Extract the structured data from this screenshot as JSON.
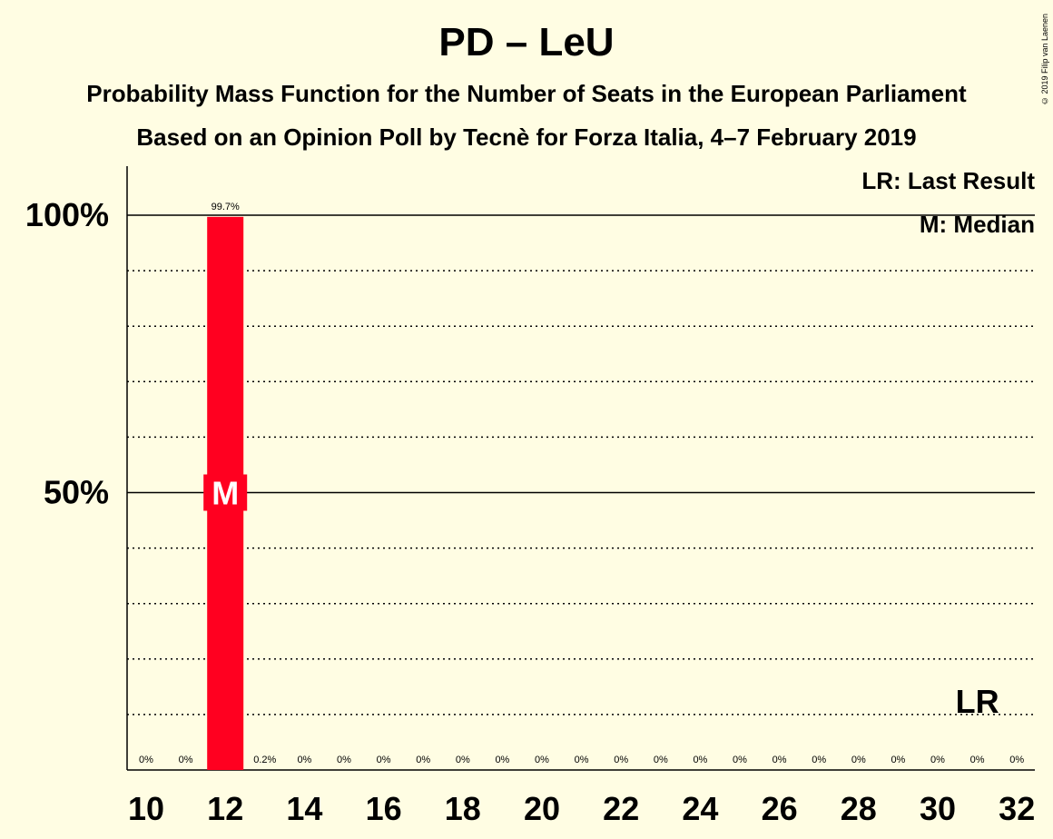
{
  "title": "PD – LeU",
  "subtitle_1": "Probability Mass Function for the Number of Seats in the European Parliament",
  "subtitle_2": "Based on an Opinion Poll by Tecnè for Forza Italia, 4–7 February 2019",
  "copyright": "© 2019 Filip van Laenen",
  "legend": {
    "last_result": "LR: Last Result",
    "median": "M: Median"
  },
  "colors": {
    "bar": "#FF0020",
    "background": "#FFFDE3"
  },
  "chart_data": {
    "type": "bar",
    "x": [
      10,
      11,
      12,
      13,
      14,
      15,
      16,
      17,
      18,
      19,
      20,
      21,
      22,
      23,
      24,
      25,
      26,
      27,
      28,
      29,
      30,
      31,
      32
    ],
    "values": [
      0,
      0,
      99.7,
      0.2,
      0,
      0,
      0,
      0,
      0,
      0,
      0,
      0,
      0,
      0,
      0,
      0,
      0,
      0,
      0,
      0,
      0,
      0,
      0
    ],
    "value_labels": [
      "0%",
      "0%",
      "99.7%",
      "0.2%",
      "0%",
      "0%",
      "0%",
      "0%",
      "0%",
      "0%",
      "0%",
      "0%",
      "0%",
      "0%",
      "0%",
      "0%",
      "0%",
      "0%",
      "0%",
      "0%",
      "0%",
      "0%",
      "0%"
    ],
    "x_tick_labels": [
      "10",
      "12",
      "14",
      "16",
      "18",
      "20",
      "22",
      "24",
      "26",
      "28",
      "30",
      "32"
    ],
    "y_tick_labels": [
      "100%",
      "50%"
    ],
    "y_ticks": [
      100,
      50
    ],
    "ylim": [
      0,
      109
    ],
    "median_seat": 12,
    "median_label": "M",
    "last_result_seat": 31,
    "last_result_label": "LR",
    "dotted_gridlines": [
      10,
      20,
      30,
      40,
      60,
      70,
      80,
      90
    ],
    "solid_gridlines": [
      50,
      100
    ]
  }
}
